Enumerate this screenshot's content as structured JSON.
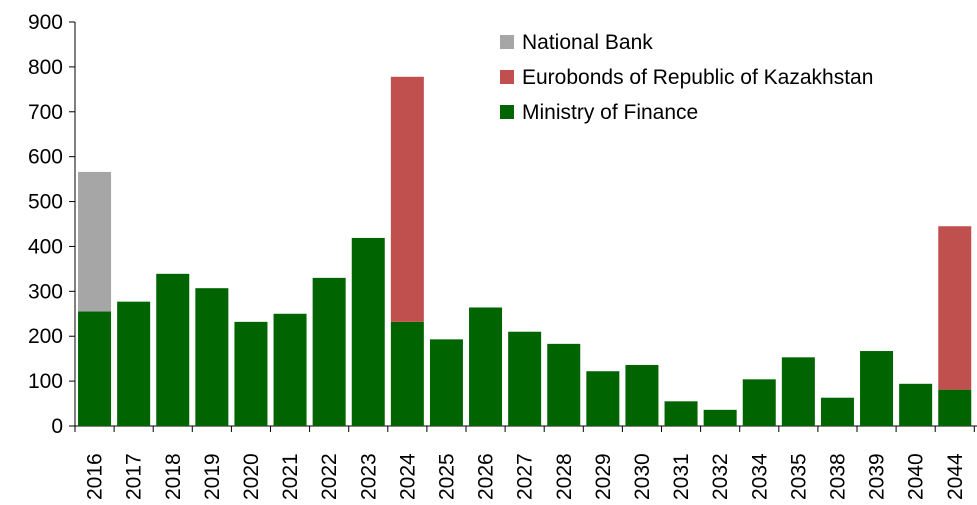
{
  "chart_data": {
    "type": "bar",
    "stacked": true,
    "categories": [
      "2016",
      "2017",
      "2018",
      "2019",
      "2020",
      "2021",
      "2022",
      "2023",
      "2024",
      "2025",
      "2026",
      "2027",
      "2028",
      "2029",
      "2030",
      "2031",
      "2032",
      "2034",
      "2035",
      "2038",
      "2039",
      "2040",
      "2044"
    ],
    "series": [
      {
        "name": "Ministry of Finance",
        "color": "#006400",
        "values": [
          255,
          277,
          339,
          307,
          232,
          250,
          330,
          419,
          232,
          193,
          264,
          210,
          183,
          122,
          136,
          55,
          36,
          104,
          153,
          63,
          167,
          94,
          81
        ]
      },
      {
        "name": "Eurobonds of Republic of Kazakhstan",
        "color": "#C0504D",
        "values": [
          0,
          0,
          0,
          0,
          0,
          0,
          0,
          0,
          546,
          0,
          0,
          0,
          0,
          0,
          0,
          0,
          0,
          0,
          0,
          0,
          0,
          0,
          364
        ]
      },
      {
        "name": "National Bank",
        "color": "#A6A6A6",
        "values": [
          311,
          0,
          0,
          0,
          0,
          0,
          0,
          0,
          0,
          0,
          0,
          0,
          0,
          0,
          0,
          0,
          0,
          0,
          0,
          0,
          0,
          0,
          0
        ]
      }
    ],
    "legend_order": [
      "National Bank",
      "Eurobonds of Republic of Kazakhstan",
      "Ministry of Finance"
    ],
    "legend_position": "top-right",
    "ylim": [
      0,
      900
    ],
    "yticks": [
      "0",
      "100",
      "200",
      "300",
      "400",
      "500",
      "600",
      "700",
      "800",
      "900"
    ],
    "xlabel": "",
    "ylabel": "",
    "title": "",
    "grid": false
  }
}
